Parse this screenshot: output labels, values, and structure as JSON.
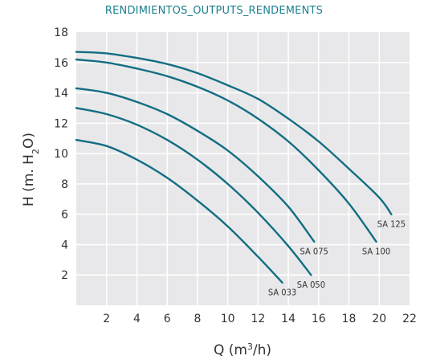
{
  "colors": {
    "accent": "#1b7f8f",
    "curve": "#126e83",
    "plot_bg": "#e8e8ea",
    "grid": "#ffffff"
  },
  "chart_data": {
    "type": "line",
    "title": "RENDIMIENTOS_OUTPUTS_RENDEMENTS",
    "xlabel_main": "Q (m",
    "xlabel_sup": "3",
    "xlabel_tail": "/h)",
    "ylabel_main": "H (m. H",
    "ylabel_sub": "2",
    "ylabel_tail": "O)",
    "xlim": [
      0,
      22
    ],
    "ylim": [
      0,
      18
    ],
    "xticks": [
      2,
      4,
      6,
      8,
      10,
      12,
      14,
      16,
      18,
      20,
      22
    ],
    "yticks": [
      2,
      4,
      6,
      8,
      10,
      12,
      14,
      16,
      18
    ],
    "grid": true,
    "series": [
      {
        "name": "SA 033",
        "x": [
          0,
          2,
          4,
          6,
          8,
          10,
          12,
          13.6
        ],
        "y": [
          10.9,
          10.5,
          9.6,
          8.4,
          6.9,
          5.2,
          3.2,
          1.5
        ]
      },
      {
        "name": "SA 050",
        "x": [
          0,
          2,
          4,
          6,
          8,
          10,
          12,
          14,
          15.5
        ],
        "y": [
          13.0,
          12.6,
          11.9,
          10.9,
          9.6,
          8.0,
          6.1,
          3.9,
          2.0
        ]
      },
      {
        "name": "SA 075",
        "x": [
          0,
          2,
          4,
          6,
          8,
          10,
          12,
          14,
          15.7
        ],
        "y": [
          14.3,
          14.0,
          13.4,
          12.6,
          11.5,
          10.2,
          8.5,
          6.5,
          4.2
        ]
      },
      {
        "name": "SA 100",
        "x": [
          0,
          2,
          4,
          6,
          8,
          10,
          12,
          14,
          16,
          18,
          19.8
        ],
        "y": [
          16.2,
          16.0,
          15.6,
          15.1,
          14.4,
          13.5,
          12.3,
          10.8,
          8.9,
          6.7,
          4.2
        ]
      },
      {
        "name": "SA 125",
        "x": [
          0,
          2,
          4,
          6,
          8,
          10,
          12,
          14,
          16,
          18,
          20,
          20.8
        ],
        "y": [
          16.7,
          16.6,
          16.3,
          15.9,
          15.3,
          14.5,
          13.6,
          12.3,
          10.8,
          9.0,
          7.1,
          6.0
        ]
      }
    ]
  }
}
